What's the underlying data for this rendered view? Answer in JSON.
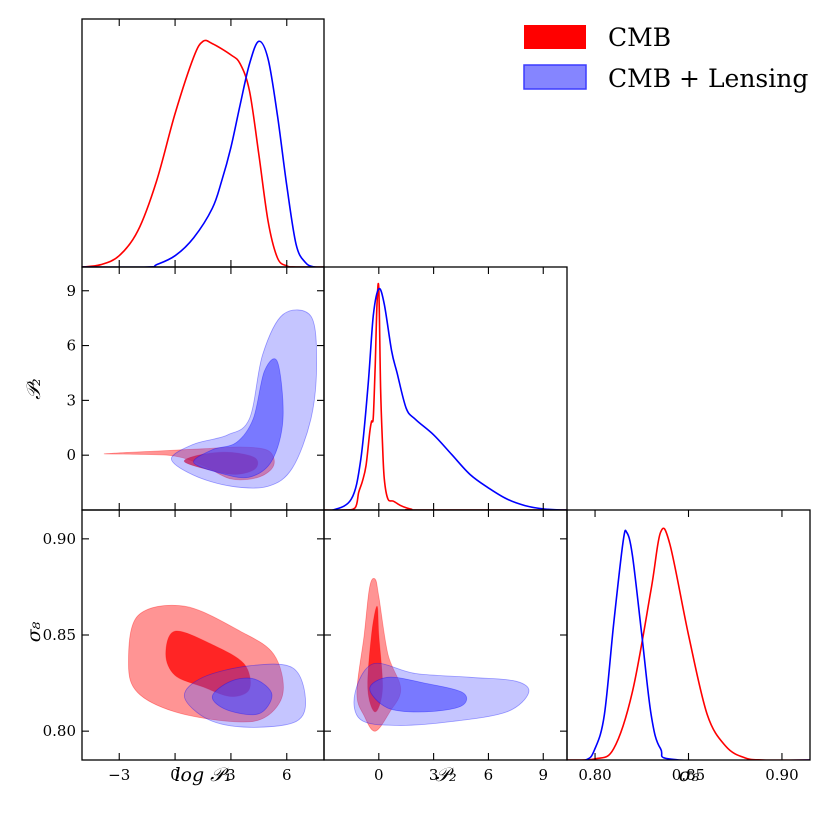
{
  "legend": {
    "items": [
      {
        "label": "CMB",
        "color": "#ff0000"
      },
      {
        "label": "CMB + Lensing",
        "color": "#6b6bff"
      }
    ]
  },
  "axes": {
    "logP1": {
      "label": "log 𝒫₁",
      "range": [
        -5,
        8
      ],
      "ticks": [
        -3,
        0,
        3,
        6
      ],
      "tick_labels": [
        "−3",
        "0",
        "3",
        "6"
      ]
    },
    "P2": {
      "label": "𝒫₂",
      "range": [
        -3,
        10.3
      ],
      "ticks": [
        0,
        3,
        6,
        9
      ],
      "tick_labels": [
        "0",
        "3",
        "6",
        "9"
      ]
    },
    "sigma8": {
      "label": "σ₈",
      "range": [
        0.785,
        0.915
      ],
      "ticks": [
        0.8,
        0.85,
        0.9
      ],
      "tick_labels": [
        "0.80",
        "0.85",
        "0.90"
      ]
    }
  },
  "colors": {
    "cmb_line": "#ff0000",
    "lens_line": "#0000ff",
    "cmb_fill": "#ff0000",
    "lens_fill": "#4a4aff"
  },
  "chart_data": {
    "type": "triangle",
    "title": "",
    "series": [
      "CMB",
      "CMB + Lensing"
    ],
    "marginals": {
      "logP1": {
        "CMB": {
          "x": [
            -5,
            -4,
            -3,
            -2,
            -1,
            0,
            1,
            1.5,
            2,
            3,
            3.5,
            4,
            4.5,
            5,
            5.5,
            6,
            6.5
          ],
          "y": [
            0,
            0.01,
            0.05,
            0.16,
            0.38,
            0.68,
            0.93,
            1.0,
            0.99,
            0.94,
            0.9,
            0.78,
            0.5,
            0.2,
            0.04,
            0.005,
            0
          ]
        },
        "CMB + Lensing": {
          "x": [
            -1.5,
            -1,
            0,
            1,
            2,
            2.5,
            3,
            3.5,
            4,
            4.5,
            5,
            5.5,
            6,
            6.5,
            7,
            7.5
          ],
          "y": [
            0,
            0.01,
            0.05,
            0.13,
            0.26,
            0.38,
            0.53,
            0.72,
            0.9,
            1.0,
            0.92,
            0.67,
            0.36,
            0.1,
            0.02,
            0
          ]
        }
      },
      "P2": {
        "CMB": {
          "x": [
            -2,
            -1.3,
            -1.1,
            -0.9,
            -0.7,
            -0.5,
            -0.4,
            -0.3,
            -0.2,
            -0.1,
            0,
            0.1,
            0.2,
            0.3,
            0.5,
            0.8,
            1.2,
            1.5,
            1.8,
            2.2
          ],
          "y": [
            0,
            0.01,
            0.08,
            0.13,
            0.2,
            0.35,
            0.4,
            0.42,
            0.65,
            0.93,
            1.0,
            0.55,
            0.3,
            0.14,
            0.05,
            0.04,
            0.02,
            0.01,
            0.003,
            0
          ]
        },
        "CMB + Lensing": {
          "x": [
            -2.5,
            -1.5,
            -1,
            -0.6,
            -0.3,
            0,
            0.3,
            0.7,
            1,
            1.5,
            2,
            3,
            4,
            5,
            6,
            7,
            8,
            9,
            10
          ],
          "y": [
            0,
            0.05,
            0.22,
            0.55,
            0.88,
            1.0,
            0.93,
            0.72,
            0.62,
            0.46,
            0.41,
            0.34,
            0.25,
            0.16,
            0.1,
            0.05,
            0.02,
            0.005,
            0
          ]
        }
      },
      "sigma8": {
        "CMB": {
          "x": [
            0.8,
            0.81,
            0.82,
            0.83,
            0.835,
            0.84,
            0.85,
            0.86,
            0.87,
            0.88,
            0.89
          ],
          "y": [
            0.005,
            0.05,
            0.3,
            0.75,
            1.0,
            0.95,
            0.55,
            0.2,
            0.06,
            0.01,
            0
          ]
        },
        "CMB + Lensing": {
          "x": [
            0.795,
            0.8,
            0.805,
            0.81,
            0.815,
            0.817,
            0.82,
            0.825,
            0.83,
            0.835,
            0.845
          ],
          "y": [
            0,
            0.05,
            0.2,
            0.6,
            0.96,
            1.0,
            0.9,
            0.55,
            0.2,
            0.05,
            0
          ]
        }
      }
    },
    "contours": {
      "P2_vs_logP1": {
        "CMB": {
          "outer": [
            [
              -3.8,
              0.07
            ],
            [
              -2,
              0.05
            ],
            [
              0,
              -0.05
            ],
            [
              1.5,
              -0.55
            ],
            [
              3,
              -1.3
            ],
            [
              4.5,
              -1.2
            ],
            [
              5.3,
              -0.55
            ],
            [
              5,
              0.25
            ],
            [
              3.5,
              0.45
            ],
            [
              1.5,
              0.35
            ],
            [
              -0.5,
              0.25
            ],
            [
              -2.5,
              0.15
            ]
          ],
          "inner": [
            [
              0.5,
              -0.35
            ],
            [
              2,
              -0.85
            ],
            [
              3.3,
              -1.05
            ],
            [
              4.3,
              -0.75
            ],
            [
              4.3,
              -0.15
            ],
            [
              3,
              0.15
            ],
            [
              1.5,
              0.05
            ]
          ]
        },
        "CMB + Lensing": {
          "outer": [
            [
              -0.2,
              -0.2
            ],
            [
              1,
              -1.1
            ],
            [
              3,
              -1.7
            ],
            [
              5,
              -1.7
            ],
            [
              6.3,
              -0.7
            ],
            [
              7.3,
              2
            ],
            [
              7.6,
              5
            ],
            [
              7.3,
              7.6
            ],
            [
              5.8,
              7.7
            ],
            [
              4.7,
              5.5
            ],
            [
              4,
              2
            ],
            [
              2.8,
              1.1
            ],
            [
              1,
              0.6
            ]
          ],
          "inner": [
            [
              1,
              -0.4
            ],
            [
              2.5,
              -1.0
            ],
            [
              4,
              -1.2
            ],
            [
              5.2,
              -0.3
            ],
            [
              5.8,
              2
            ],
            [
              5.5,
              5.1
            ],
            [
              4.8,
              4.6
            ],
            [
              4.2,
              2
            ],
            [
              3.3,
              0.7
            ],
            [
              2,
              0.3
            ]
          ]
        }
      },
      "sigma8_vs_logP1": {
        "CMB": {
          "outer": [
            [
              -2.5,
              0.835
            ],
            [
              -2,
              0.82
            ],
            [
              0,
              0.81
            ],
            [
              3,
              0.805
            ],
            [
              4.8,
              0.807
            ],
            [
              5.8,
              0.82
            ],
            [
              5.3,
              0.84
            ],
            [
              3.5,
              0.852
            ],
            [
              0.5,
              0.865
            ],
            [
              -2,
              0.86
            ]
          ],
          "inner": [
            [
              -0.5,
              0.84
            ],
            [
              0,
              0.829
            ],
            [
              1.5,
              0.823
            ],
            [
              3,
              0.818
            ],
            [
              4,
              0.822
            ],
            [
              3.7,
              0.835
            ],
            [
              2,
              0.845
            ],
            [
              0,
              0.852
            ]
          ]
        },
        "CMB + Lensing": {
          "outer": [
            [
              0.5,
              0.818
            ],
            [
              1.8,
              0.806
            ],
            [
              4,
              0.802
            ],
            [
              6.5,
              0.805
            ],
            [
              7,
              0.817
            ],
            [
              6.3,
              0.833
            ],
            [
              4,
              0.834
            ],
            [
              1.5,
              0.828
            ]
          ],
          "inner": [
            [
              2,
              0.818
            ],
            [
              2.8,
              0.811
            ],
            [
              4.5,
              0.809
            ],
            [
              5.2,
              0.819
            ],
            [
              4.3,
              0.827
            ],
            [
              3,
              0.826
            ]
          ]
        }
      },
      "sigma8_vs_P2": {
        "CMB": {
          "outer": [
            [
              -1.2,
              0.82
            ],
            [
              -0.8,
              0.808
            ],
            [
              -0.2,
              0.8
            ],
            [
              0.6,
              0.81
            ],
            [
              1.2,
              0.822
            ],
            [
              0.5,
              0.84
            ],
            [
              0,
              0.87
            ],
            [
              -0.2,
              0.879
            ],
            [
              -0.5,
              0.875
            ],
            [
              -0.8,
              0.85
            ]
          ],
          "inner": [
            [
              -0.6,
              0.822
            ],
            [
              -0.2,
              0.81
            ],
            [
              0.2,
              0.822
            ],
            [
              0,
              0.85
            ],
            [
              -0.1,
              0.865
            ],
            [
              -0.4,
              0.85
            ]
          ]
        },
        "CMB + Lensing": {
          "outer": [
            [
              -1.3,
              0.82
            ],
            [
              -1.0,
              0.806
            ],
            [
              1,
              0.803
            ],
            [
              4,
              0.805
            ],
            [
              7,
              0.81
            ],
            [
              8.2,
              0.82
            ],
            [
              7.5,
              0.826
            ],
            [
              5,
              0.828
            ],
            [
              2,
              0.83
            ],
            [
              -0.3,
              0.835
            ]
          ],
          "inner": [
            [
              -0.5,
              0.822
            ],
            [
              0.5,
              0.812
            ],
            [
              2.5,
              0.81
            ],
            [
              4.5,
              0.813
            ],
            [
              4.6,
              0.82
            ],
            [
              2.5,
              0.825
            ],
            [
              0.5,
              0.828
            ]
          ]
        }
      }
    }
  }
}
